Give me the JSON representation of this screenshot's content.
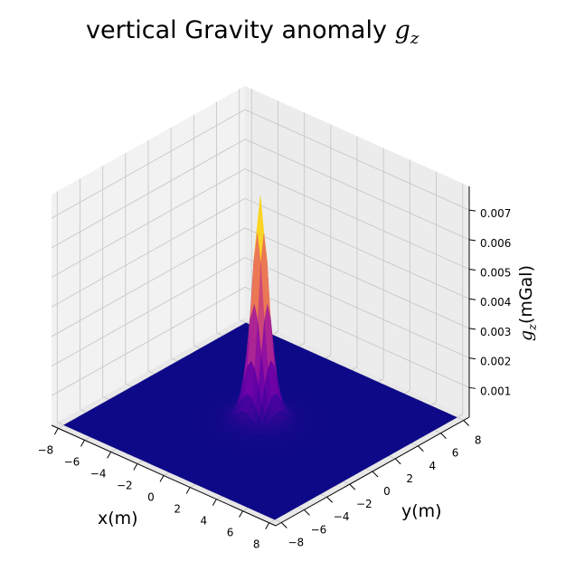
{
  "chart_data": {
    "type": "surface3d",
    "title_text": "vertical Gravity anomaly ",
    "title_symbol": "g",
    "title_sub": "z",
    "xlabel": "x(m)",
    "ylabel": "y(m)",
    "zlabel_symbol": "g",
    "zlabel_sub": "z",
    "zlabel_text": "(mGal)",
    "xlim": [
      -8.5,
      8.5
    ],
    "ylim": [
      -8.5,
      8.5
    ],
    "zlim": [
      0,
      0.0078
    ],
    "x_ticks": [
      -8,
      -6,
      -4,
      -2,
      0,
      2,
      4,
      6,
      8
    ],
    "y_ticks": [
      -8,
      -6,
      -4,
      -2,
      0,
      2,
      4,
      6,
      8
    ],
    "z_ticks": [
      0.001,
      0.002,
      0.003,
      0.004,
      0.005,
      0.006,
      0.007
    ],
    "z_tick_labels": [
      "0.001",
      "0.002",
      "0.003",
      "0.004",
      "0.005",
      "0.006",
      "0.007"
    ],
    "peak": {
      "x": 0,
      "y": 0,
      "value": 0.0076
    },
    "colormap": "plasma",
    "grid": true
  }
}
